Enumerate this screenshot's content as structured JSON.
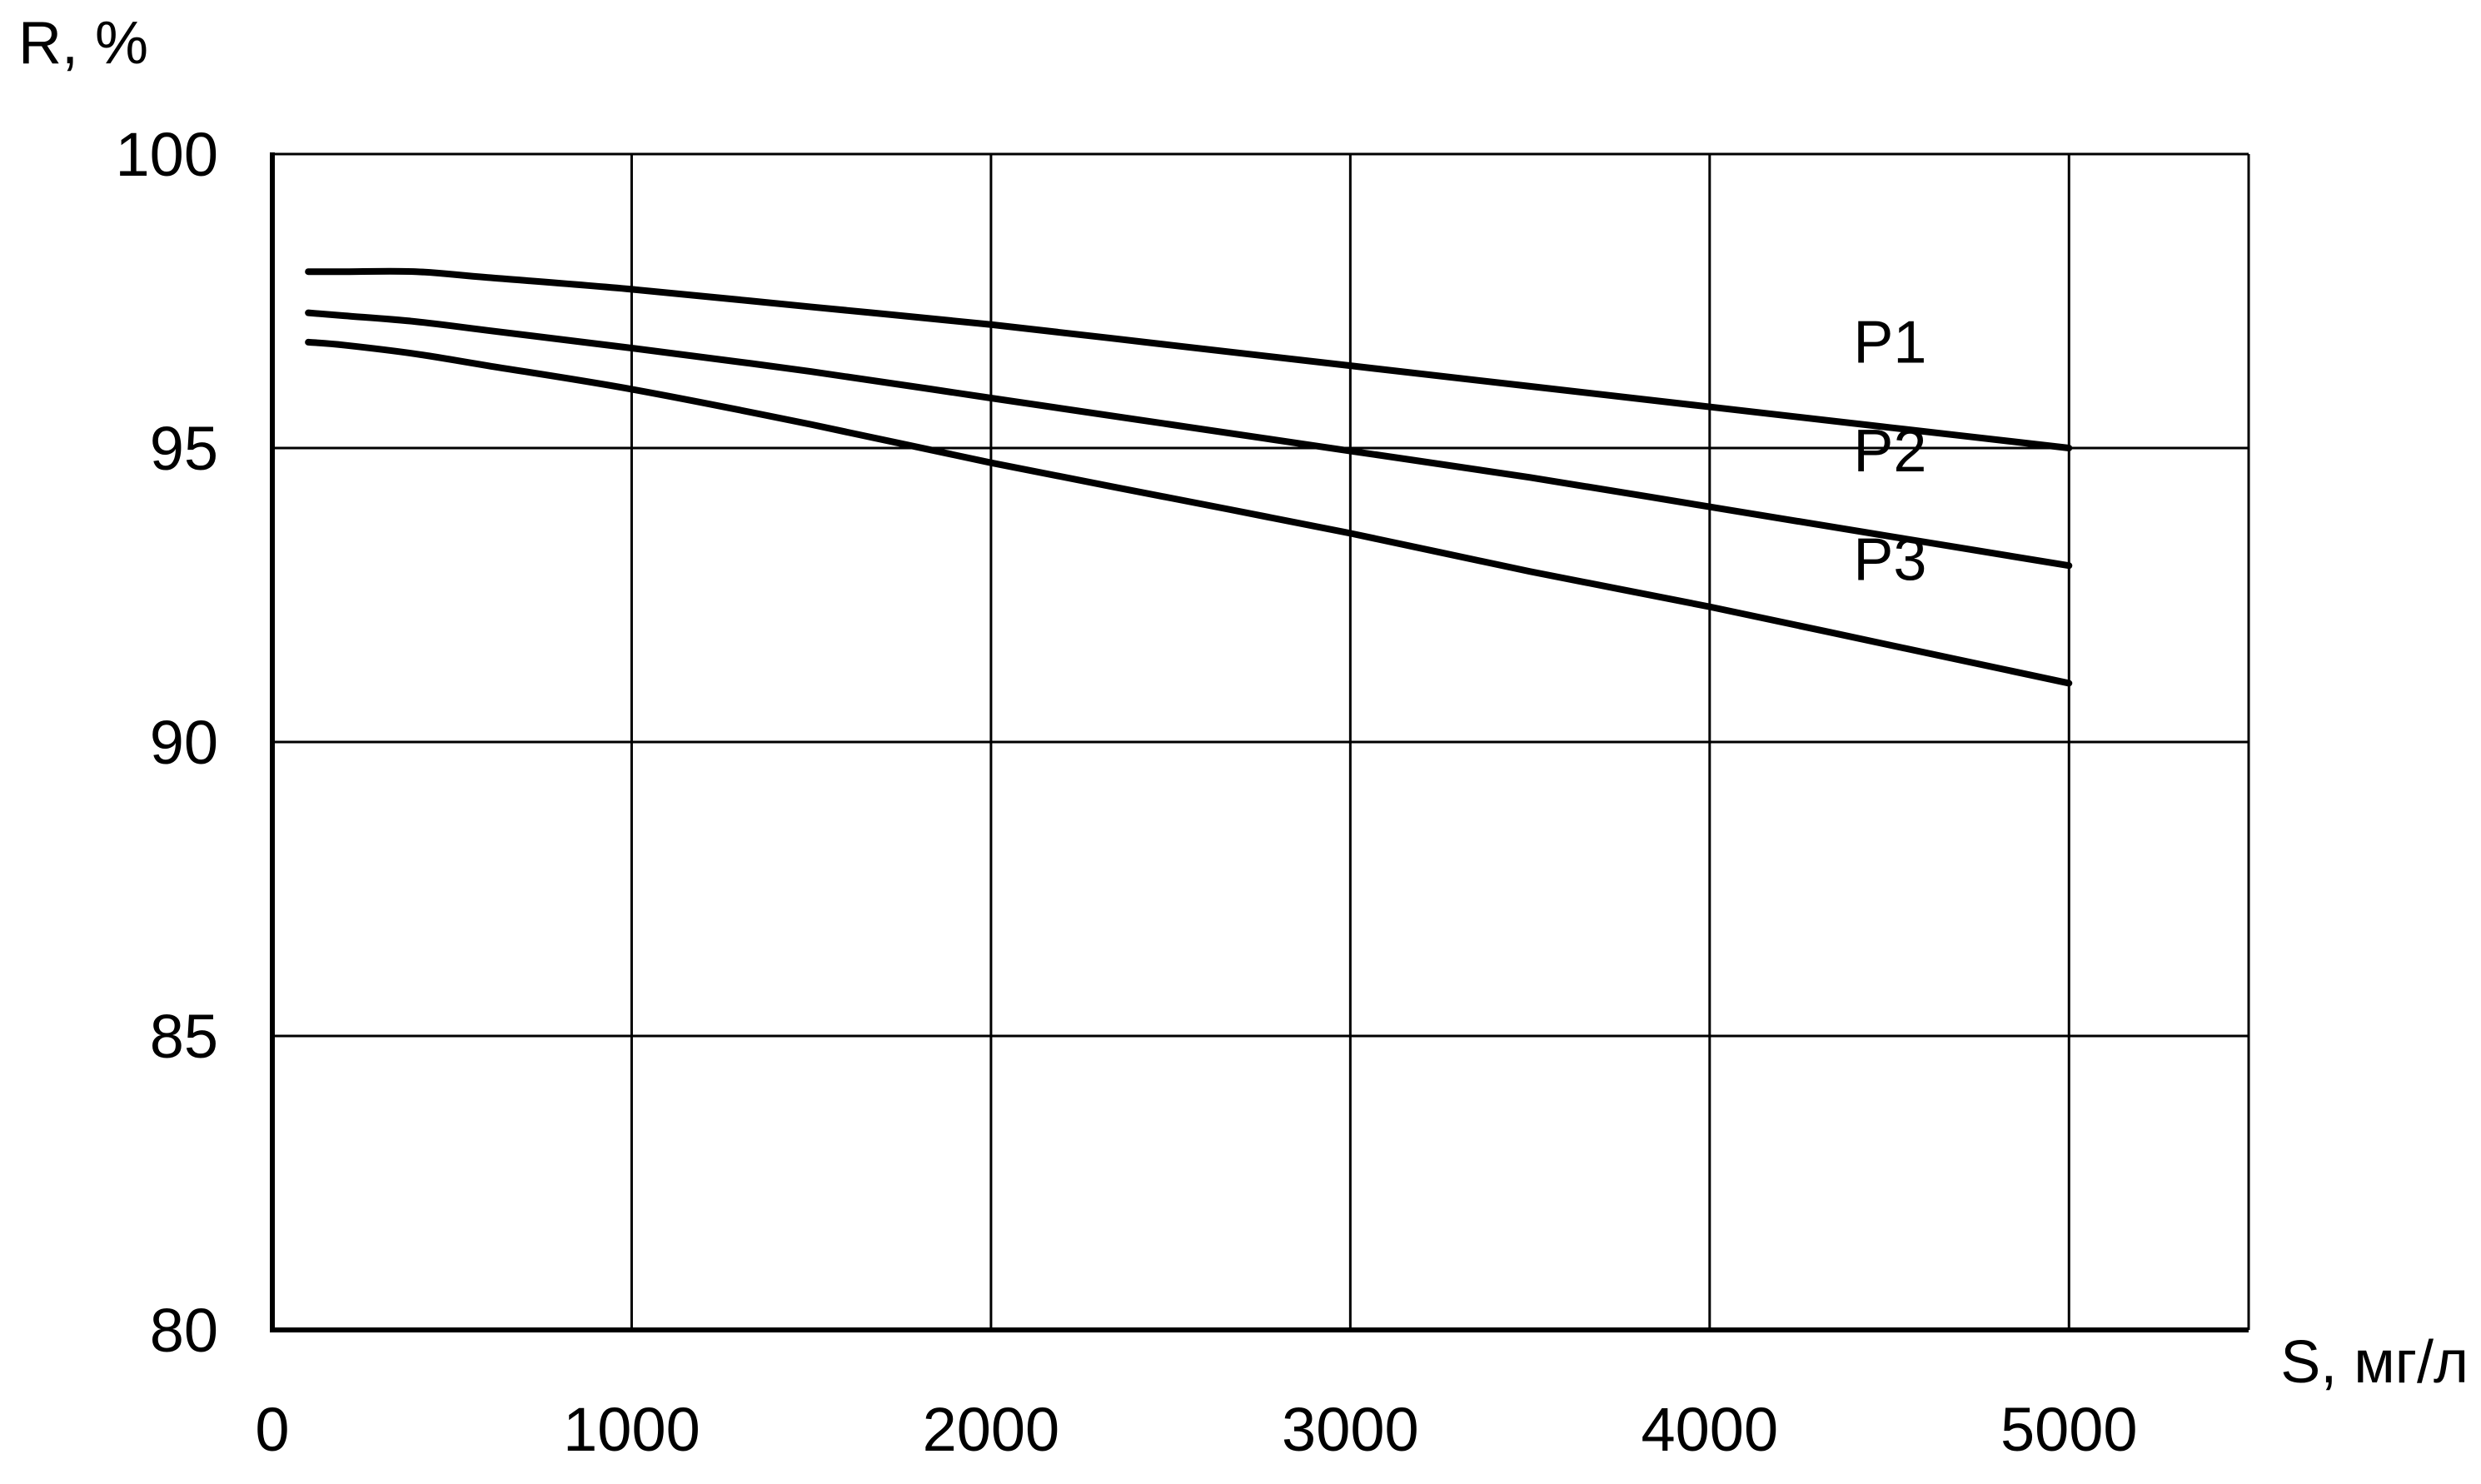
{
  "chart_data": {
    "type": "line",
    "xlabel": "S, мг/л",
    "ylabel": "R, %",
    "xlim": [
      0,
      5500
    ],
    "ylim": [
      80,
      100
    ],
    "x_ticks": [
      0,
      1000,
      2000,
      3000,
      4000,
      5000
    ],
    "y_ticks": [
      80,
      85,
      90,
      95,
      100
    ],
    "grid": true,
    "series": [
      {
        "name": "P1",
        "x": [
          100,
          200,
          400,
          600,
          1000,
          1500,
          2000,
          2500,
          3000,
          3500,
          4000,
          4500,
          5000
        ],
        "y": [
          98.0,
          98.0,
          98.0,
          97.9,
          97.7,
          97.4,
          97.1,
          96.75,
          96.4,
          96.05,
          95.7,
          95.35,
          95.0
        ]
      },
      {
        "name": "P2",
        "x": [
          100,
          200,
          400,
          600,
          1000,
          1500,
          2000,
          2500,
          3000,
          3500,
          4000,
          4500,
          5000
        ],
        "y": [
          97.3,
          97.25,
          97.15,
          97.0,
          96.7,
          96.3,
          95.85,
          95.4,
          94.95,
          94.5,
          94.0,
          93.5,
          93.0
        ]
      },
      {
        "name": "P3",
        "x": [
          100,
          200,
          400,
          600,
          1000,
          1500,
          2000,
          2500,
          3000,
          3500,
          4000,
          4500,
          5000
        ],
        "y": [
          96.8,
          96.75,
          96.6,
          96.4,
          96.0,
          95.4,
          94.75,
          94.15,
          93.55,
          92.9,
          92.3,
          91.65,
          91.0
        ]
      }
    ],
    "colors": {
      "line": "#000000",
      "grid": "#000000",
      "background": "#ffffff"
    }
  }
}
